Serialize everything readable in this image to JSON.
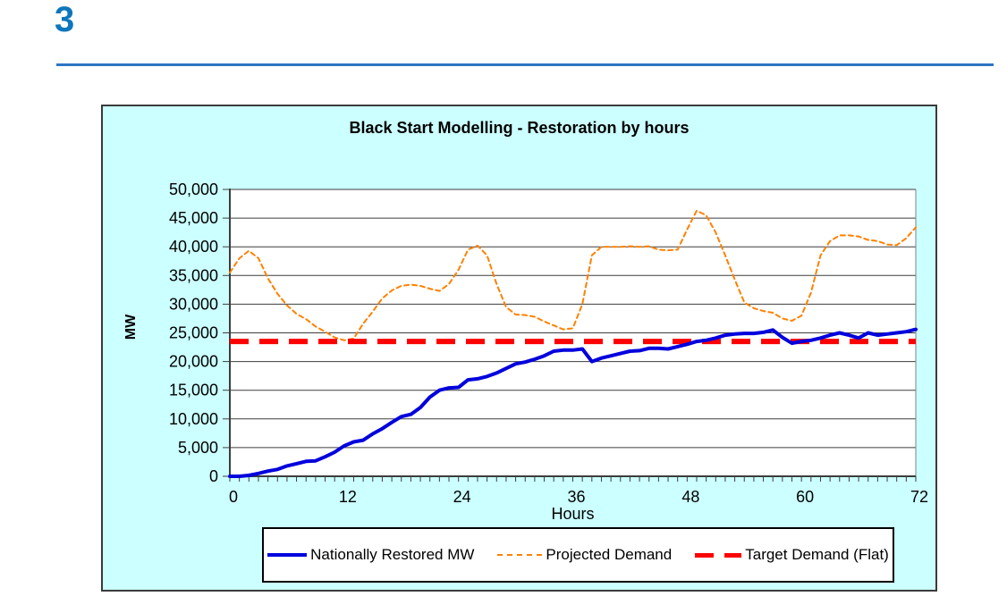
{
  "slide": {
    "number": "3"
  },
  "colors": {
    "heading": "#0E76BC",
    "rule": "#2E75C3",
    "chart_background": "#CCFFFF",
    "restored_line": "#0000DD",
    "projected_line": "#FF8000",
    "target_line": "#FF0000"
  },
  "chart_data": {
    "type": "line",
    "title": "Black Start Modelling - Restoration by hours",
    "xlabel": "Hours",
    "ylabel": "MW",
    "xlim": [
      0,
      72
    ],
    "ylim": [
      0,
      50000
    ],
    "xtick_step": 12,
    "xtick_minor_step": 1,
    "ytick_step": 5000,
    "x_step": 1,
    "grid": "horizontal",
    "legend_position": "bottom",
    "series": [
      {
        "name": "Nationally Restored MW",
        "color": "#0000DD",
        "style": "solid",
        "width": 4,
        "values": [
          0,
          0,
          150,
          500,
          900,
          1200,
          1800,
          2200,
          2600,
          2700,
          3400,
          4200,
          5300,
          6000,
          6300,
          7400,
          8300,
          9400,
          10400,
          10800,
          12000,
          13800,
          15000,
          15400,
          15500,
          16800,
          17000,
          17400,
          18000,
          18800,
          19600,
          19900,
          20400,
          21000,
          21800,
          22000,
          22000,
          22200,
          20000,
          20600,
          21000,
          21400,
          21800,
          21900,
          22300,
          22300,
          22200,
          22600,
          23000,
          23500,
          23700,
          24100,
          24600,
          24800,
          24900,
          24900,
          25100,
          25500,
          24200,
          23200,
          23500,
          23700,
          24100,
          24600,
          25000,
          24600,
          24100,
          25000,
          24600,
          24800,
          25000,
          25200,
          25600
        ]
      },
      {
        "name": "Projected Demand",
        "color": "#FF8000",
        "style": "dashed",
        "width": 2,
        "values": [
          35500,
          38000,
          39300,
          38000,
          34500,
          31800,
          29800,
          28300,
          27400,
          26100,
          25200,
          24200,
          23700,
          24000,
          26600,
          28700,
          31000,
          32400,
          33200,
          33400,
          33200,
          32700,
          32300,
          33500,
          36000,
          39500,
          40200,
          38500,
          33500,
          29500,
          28200,
          28100,
          27800,
          27000,
          26300,
          25600,
          25800,
          30000,
          38500,
          40000,
          40000,
          40000,
          40100,
          40000,
          40100,
          39500,
          39400,
          39500,
          43000,
          46300,
          45500,
          42500,
          38500,
          34300,
          30300,
          29300,
          28800,
          28500,
          27500,
          27100,
          28000,
          32000,
          38500,
          41000,
          42000,
          42000,
          41800,
          41200,
          41000,
          40400,
          40300,
          41500,
          43400
        ]
      },
      {
        "name": "Target Demand (Flat)",
        "color": "#FF0000",
        "style": "long-dash",
        "width": 6,
        "value": 23500
      }
    ]
  }
}
